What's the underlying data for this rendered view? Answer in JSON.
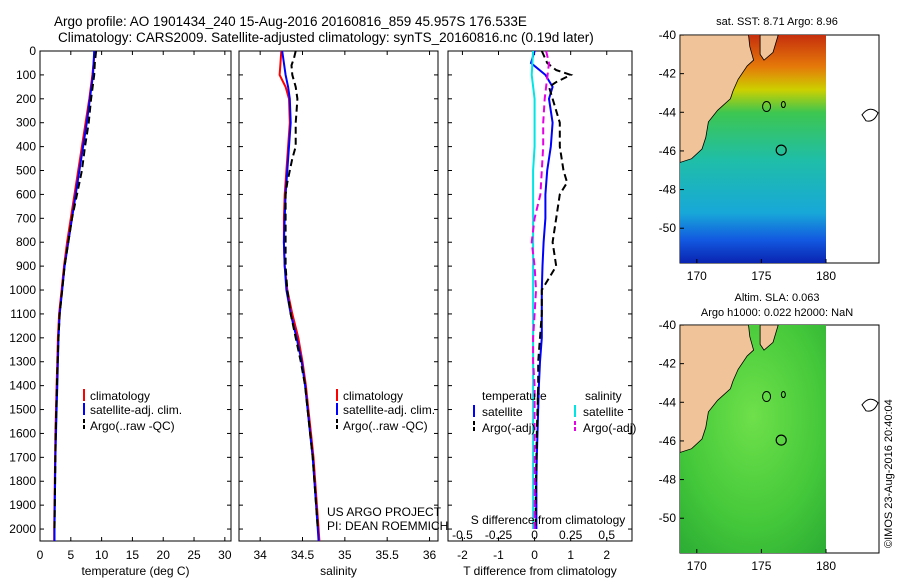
{
  "header": {
    "line1": "Argo profile: AO 1901434_240 15-Aug-2016 20160816_859 45.957S 176.533E",
    "line2": "Climatology: CARS2009. Satellite-adjusted climatology: synTS_20160816.nc (0.19d later)"
  },
  "credits": {
    "line1": "US ARGO PROJECT",
    "line2": "PI: DEAN ROEMMICH"
  },
  "timestamp": "©IMOS 23-Aug-2016 20:40:04",
  "colors": {
    "climatology": "#ff0000",
    "satellite": "#0000ff",
    "argo": "#000000",
    "sat_salinity": "#00e5e5",
    "argo_salinity": "#e600e6",
    "land": "#f0c498"
  },
  "chart_data": [
    {
      "type": "line",
      "xlabel": "temperature (deg C)",
      "ylabel": "",
      "xlim": [
        0,
        31
      ],
      "ylim": [
        2050,
        0
      ],
      "xticks": [
        "0",
        "5",
        "10",
        "15",
        "20",
        "25",
        "30"
      ],
      "yticks": [
        "0",
        "100",
        "200",
        "300",
        "400",
        "500",
        "600",
        "700",
        "800",
        "900",
        "1000",
        "1100",
        "1200",
        "1300",
        "1400",
        "1500",
        "1600",
        "1700",
        "1800",
        "1900",
        "2000"
      ],
      "legend": [
        "climatology",
        "satellite-adj. clim.",
        "Argo(..raw -QC)"
      ],
      "series": [
        {
          "name": "climatology",
          "depth": [
            0,
            100,
            200,
            300,
            400,
            500,
            600,
            700,
            800,
            900,
            1000,
            1100,
            1200,
            1300,
            1400,
            1500,
            1600,
            1700,
            1800,
            1900,
            2000,
            2050
          ],
          "values": [
            8.9,
            8.5,
            8.0,
            7.4,
            6.8,
            6.2,
            5.6,
            5.0,
            4.4,
            3.9,
            3.5,
            3.1,
            2.9,
            2.8,
            2.7,
            2.6,
            2.5,
            2.45,
            2.4,
            2.35,
            2.3,
            2.3
          ]
        },
        {
          "name": "satellite-adj. clim.",
          "depth": [
            0,
            100,
            200,
            300,
            400,
            500,
            600,
            700,
            800,
            900,
            1000,
            1100,
            1200,
            1300,
            1400,
            1500,
            1600,
            1700,
            1800,
            1900,
            2000,
            2050
          ],
          "values": [
            8.8,
            8.6,
            8.1,
            7.6,
            7.0,
            6.4,
            5.8,
            5.2,
            4.6,
            4.0,
            3.6,
            3.2,
            3.0,
            2.9,
            2.8,
            2.7,
            2.6,
            2.5,
            2.45,
            2.4,
            2.35,
            2.35
          ]
        },
        {
          "name": "Argo(..raw -QC)",
          "depth": [
            0,
            50,
            100,
            200,
            300,
            400,
            500,
            600,
            700,
            800,
            900,
            1000,
            1100,
            1200,
            1300,
            1400,
            1500,
            1600,
            1700,
            1800,
            1900,
            2000
          ],
          "values": [
            9.1,
            8.9,
            8.8,
            8.3,
            7.9,
            7.3,
            6.8,
            6.0,
            5.2,
            4.6,
            4.0,
            3.6,
            3.2,
            3.0,
            2.85,
            2.75,
            2.65,
            2.55,
            2.5,
            2.45,
            2.4,
            2.35
          ]
        }
      ]
    },
    {
      "type": "line",
      "xlabel": "salinity",
      "xlim": [
        33.75,
        36.1
      ],
      "ylim": [
        2050,
        0
      ],
      "xticks": [
        "34",
        "34.5",
        "35",
        "35.5",
        "36"
      ],
      "legend": [
        "climatology",
        "satellite-adj. clim.",
        "Argo(..raw -QC)"
      ],
      "series": [
        {
          "name": "climatology",
          "depth": [
            0,
            50,
            100,
            150,
            200,
            300,
            400,
            500,
            600,
            700,
            800,
            900,
            1000,
            1100,
            1200,
            1300,
            1400,
            1500,
            1600,
            1700,
            1800,
            1900,
            2000,
            2050
          ],
          "values": [
            34.25,
            34.24,
            34.23,
            34.3,
            34.34,
            34.35,
            34.33,
            34.31,
            34.29,
            34.28,
            34.28,
            34.29,
            34.32,
            34.38,
            34.45,
            34.5,
            34.54,
            34.57,
            34.6,
            34.63,
            34.65,
            34.67,
            34.69,
            34.7
          ]
        },
        {
          "name": "satellite-adj. clim.",
          "depth": [
            0,
            50,
            100,
            150,
            200,
            300,
            400,
            500,
            600,
            700,
            800,
            900,
            1000,
            1100,
            1200,
            1300,
            1400,
            1500,
            1600,
            1700,
            1800,
            1900,
            2000,
            2050
          ],
          "values": [
            34.26,
            34.28,
            34.3,
            34.33,
            34.35,
            34.36,
            34.34,
            34.32,
            34.3,
            34.29,
            34.28,
            34.29,
            34.31,
            34.36,
            34.43,
            34.49,
            34.53,
            34.56,
            34.59,
            34.62,
            34.64,
            34.66,
            34.68,
            34.69
          ]
        },
        {
          "name": "Argo(..raw -QC)",
          "depth": [
            0,
            30,
            60,
            100,
            150,
            200,
            250,
            300,
            400,
            450,
            500,
            550,
            600,
            700,
            800,
            900,
            1000,
            1100,
            1200,
            1300,
            1400,
            1500,
            1600,
            1700,
            1800,
            1900,
            2000
          ],
          "values": [
            34.42,
            34.4,
            34.37,
            34.38,
            34.42,
            34.44,
            34.43,
            34.42,
            34.42,
            34.38,
            34.35,
            34.32,
            34.3,
            34.3,
            34.3,
            34.3,
            34.32,
            34.36,
            34.42,
            34.48,
            34.53,
            34.56,
            34.59,
            34.62,
            34.64,
            34.66,
            34.68
          ]
        }
      ]
    },
    {
      "type": "line",
      "xlabel": "T difference from climatology",
      "top_label": "S difference from climatology",
      "xlim": [
        -2.4,
        2.7
      ],
      "xlim_salinity": [
        -0.6,
        0.675
      ],
      "ylim": [
        2050,
        0
      ],
      "xticks": [
        "-2",
        "-1",
        "0",
        "1",
        "2"
      ],
      "xticks_top": [
        "-0.5",
        "-0.25",
        "0",
        "0.25",
        "0.5"
      ],
      "legend_headers": [
        "temperature",
        "salinity"
      ],
      "legend": [
        "satellite",
        "Argo(-adj)",
        "satellite",
        "Argo(-adj)"
      ],
      "series": [
        {
          "name": "satellite",
          "depth": [
            0,
            50,
            100,
            150,
            200,
            300,
            400,
            500,
            600,
            700,
            800,
            900,
            1000,
            1100,
            1200,
            1300,
            1400,
            1500,
            1600,
            1700,
            1800,
            1900,
            2000
          ],
          "values": [
            0.0,
            -0.1,
            0.3,
            0.5,
            0.4,
            0.5,
            0.45,
            0.35,
            0.3,
            0.3,
            0.25,
            0.22,
            0.2,
            0.2,
            0.2,
            0.15,
            0.12,
            0.1,
            0.08,
            0.06,
            0.05,
            0.05,
            0.05
          ]
        },
        {
          "name": "Argo(-adj)",
          "depth": [
            0,
            50,
            80,
            100,
            130,
            150,
            200,
            300,
            400,
            500,
            550,
            600,
            700,
            800,
            900,
            950,
            1000,
            1100,
            1200,
            1300,
            1400,
            1500,
            1600,
            1700,
            1800,
            1900,
            2000
          ],
          "values": [
            0.2,
            0.35,
            0.6,
            1.0,
            0.6,
            0.4,
            0.5,
            0.7,
            0.7,
            0.8,
            0.9,
            0.7,
            0.6,
            0.5,
            0.6,
            0.4,
            0.2,
            0.2,
            0.15,
            0.1,
            0.1,
            0.08,
            0.06,
            0.05,
            0.04,
            0.03,
            0.03
          ]
        },
        {
          "name": "satellite",
          "depth": [
            0,
            100,
            200,
            300,
            400,
            500,
            600,
            700,
            800,
            900,
            1000,
            1200,
            1400,
            1600,
            1800,
            2000
          ],
          "values": [
            -0.01,
            -0.02,
            0.0,
            0.0,
            0.0,
            -0.01,
            -0.01,
            -0.01,
            -0.01,
            -0.01,
            -0.01,
            -0.01,
            -0.01,
            -0.01,
            -0.01,
            -0.01
          ]
        },
        {
          "name": "Argo(-adj)",
          "depth": [
            0,
            50,
            100,
            150,
            200,
            300,
            400,
            500,
            600,
            700,
            800,
            900,
            1000,
            1100,
            1200,
            1300,
            1400,
            1500,
            1600,
            1700,
            1800,
            1900,
            2000
          ],
          "values": [
            0.08,
            0.1,
            0.09,
            0.08,
            0.07,
            0.06,
            0.06,
            0.05,
            0.04,
            0.0,
            -0.02,
            0.0,
            0.01,
            0.0,
            -0.01,
            -0.01,
            0.0,
            0.0,
            0.0,
            0.0,
            0.0,
            0.0,
            0.0
          ]
        }
      ]
    }
  ],
  "maps": [
    {
      "title": "sat. SST: 8.71  Argo: 8.96",
      "xticks": [
        "170",
        "175",
        "180"
      ],
      "yticks": [
        "-40",
        "-42",
        "-44",
        "-46",
        "-48",
        "-50"
      ]
    },
    {
      "title_line1": "Altim. SLA: 0.063",
      "title_line2": "Argo h1000: 0.022 h2000: NaN",
      "xticks": [
        "170",
        "175",
        "180"
      ],
      "yticks": [
        "-40",
        "-42",
        "-44",
        "-46",
        "-48",
        "-50"
      ]
    }
  ]
}
